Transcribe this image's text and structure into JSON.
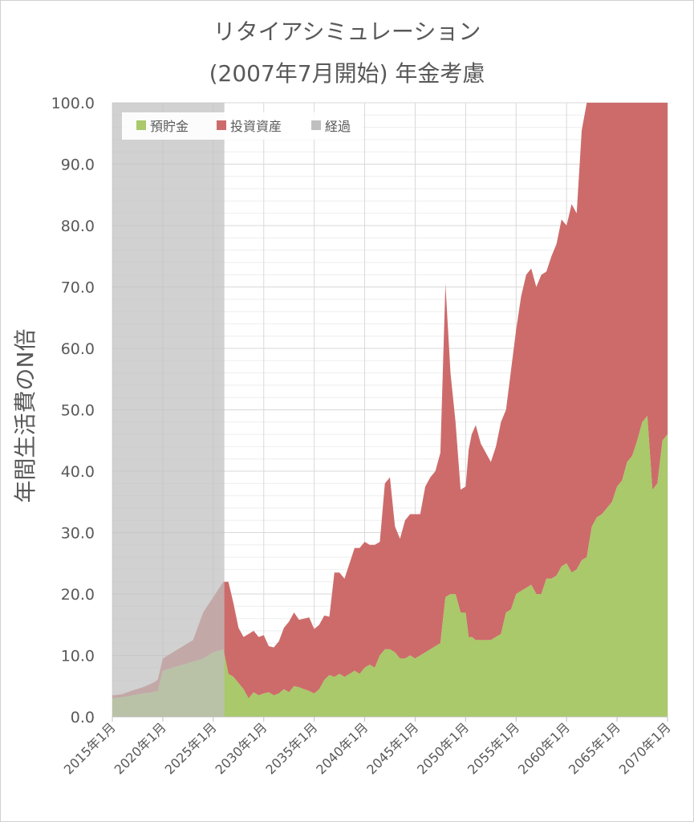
{
  "chart_data": {
    "type": "area",
    "title": "リタイアシミュレーション",
    "subtitle": "(2007年7月開始) 年金考慮",
    "ylabel": "年間生活費のN倍",
    "xlabel": "",
    "ylim": [
      0,
      100
    ],
    "yticks": [
      "0.0",
      "10.0",
      "20.0",
      "30.0",
      "40.0",
      "50.0",
      "60.0",
      "70.0",
      "80.0",
      "90.0",
      "100.0"
    ],
    "xlim": [
      2015.0,
      2070.0
    ],
    "xticks": [
      "2015年1月",
      "2020年1月",
      "2025年1月",
      "2030年1月",
      "2035年1月",
      "2040年1月",
      "2045年1月",
      "2050年1月",
      "2055年1月",
      "2060年1月",
      "2065年1月",
      "2070年1月"
    ],
    "grid": true,
    "legend_position": "top-left",
    "legend": [
      "預貯金",
      "投資資産",
      "経過"
    ],
    "elapsed_end": 2026.1,
    "colors": {
      "savings": "#a9c96a",
      "investment": "#cd6b6b",
      "elapsed": "#bfbfbf"
    },
    "x": [
      2015.0,
      2016.0,
      2017.0,
      2018.0,
      2019.0,
      2019.5,
      2020.0,
      2021.0,
      2022.0,
      2023.0,
      2024.0,
      2025.0,
      2026.0,
      2026.5,
      2027.0,
      2027.5,
      2028.0,
      2028.5,
      2029.0,
      2029.5,
      2030.0,
      2030.5,
      2031.0,
      2031.5,
      2032.0,
      2032.5,
      2033.0,
      2033.5,
      2034.0,
      2034.5,
      2035.0,
      2035.5,
      2036.0,
      2036.5,
      2037.0,
      2037.5,
      2038.0,
      2038.5,
      2039.0,
      2039.5,
      2040.0,
      2040.5,
      2041.0,
      2041.5,
      2042.0,
      2042.5,
      2043.0,
      2043.5,
      2044.0,
      2044.5,
      2045.0,
      2045.5,
      2046.0,
      2046.5,
      2047.0,
      2047.5,
      2048.0,
      2048.5,
      2049.0,
      2049.5,
      2050.0,
      2050.3,
      2050.6,
      2051.0,
      2051.5,
      2052.0,
      2052.5,
      2053.0,
      2053.5,
      2054.0,
      2054.5,
      2055.0,
      2055.5,
      2056.0,
      2056.5,
      2057.0,
      2057.5,
      2058.0,
      2058.5,
      2059.0,
      2059.5,
      2060.0,
      2060.5,
      2061.0,
      2061.5,
      2062.0,
      2062.5,
      2063.0,
      2063.5,
      2064.0,
      2064.5,
      2065.0,
      2065.5,
      2066.0,
      2066.5,
      2067.0,
      2067.5,
      2068.0,
      2068.5,
      2069.0,
      2069.5,
      2070.0
    ],
    "series": [
      {
        "name": "預貯金",
        "values": [
          3.0,
          3.2,
          3.5,
          3.8,
          4.0,
          4.2,
          7.5,
          8.0,
          8.5,
          9.0,
          9.5,
          10.5,
          11.0,
          7.0,
          6.5,
          5.5,
          4.5,
          3.0,
          4.0,
          3.5,
          3.8,
          4.0,
          3.5,
          3.8,
          4.5,
          4.0,
          5.0,
          4.8,
          4.5,
          4.2,
          3.8,
          4.5,
          6.0,
          6.8,
          6.5,
          7.0,
          6.5,
          7.0,
          7.5,
          7.0,
          8.0,
          8.5,
          8.0,
          10.0,
          11.0,
          11.0,
          10.5,
          9.5,
          9.5,
          10.0,
          9.5,
          10.0,
          10.5,
          11.0,
          11.5,
          12.0,
          19.5,
          20.0,
          20.0,
          17.0,
          17.0,
          13.0,
          13.0,
          12.5,
          12.5,
          12.5,
          12.5,
          13.0,
          13.5,
          17.0,
          17.5,
          20.0,
          20.5,
          21.0,
          21.5,
          20.0,
          20.0,
          22.5,
          22.5,
          23.0,
          24.5,
          25.0,
          23.5,
          24.0,
          25.5,
          26.0,
          31.0,
          32.5,
          33.0,
          34.0,
          35.0,
          37.5,
          38.5,
          41.5,
          42.5,
          45.0,
          48.0,
          49.0,
          37.0,
          38.0,
          45.0,
          46.0
        ]
      },
      {
        "name": "投資資産",
        "values": [
          0.5,
          0.5,
          0.8,
          1.0,
          1.5,
          1.8,
          2.0,
          2.5,
          3.0,
          3.5,
          7.5,
          9.0,
          11.0,
          15.0,
          12.0,
          9.0,
          8.5,
          10.5,
          10.0,
          9.5,
          9.5,
          7.5,
          7.8,
          8.5,
          10.0,
          11.5,
          12.0,
          11.0,
          11.5,
          12.0,
          10.5,
          10.5,
          10.5,
          9.5,
          17.0,
          16.5,
          16.0,
          18.0,
          20.0,
          20.5,
          20.5,
          19.5,
          20.0,
          18.5,
          27.0,
          28.0,
          20.5,
          19.5,
          22.5,
          23.0,
          23.5,
          23.0,
          27.0,
          28.0,
          28.5,
          31.0,
          51.0,
          36.0,
          28.0,
          20.0,
          20.5,
          30.5,
          33.0,
          35.0,
          32.0,
          30.5,
          29.0,
          31.0,
          34.5,
          33.0,
          39.0,
          43.0,
          48.0,
          51.0,
          51.5,
          50.0,
          52.0,
          50.0,
          52.5,
          54.0,
          56.5,
          55.0,
          60.0,
          58.0,
          70.0,
          74.0,
          69.0,
          67.5,
          80.0,
          66.0,
          80.0,
          62.5,
          61.5,
          58.5,
          57.5,
          55.0,
          52.0,
          51.0,
          63.0,
          62.0,
          55.0,
          54.0
        ]
      }
    ]
  }
}
